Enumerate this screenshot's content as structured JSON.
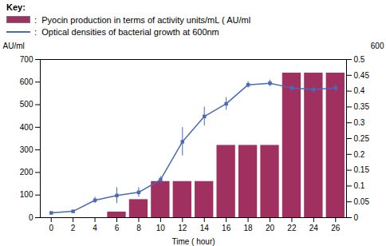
{
  "chart_data": {
    "type": "bar",
    "xlabel": "Time ( hour)",
    "ylabel": "AU/ml",
    "y2label": "600",
    "annotations": [
      "Key:"
    ],
    "legend": "upper left",
    "grid": false,
    "xlim": [
      -1,
      27
    ],
    "xticks": [
      0,
      2,
      4,
      6,
      8,
      10,
      12,
      14,
      16,
      18,
      20,
      22,
      24,
      26
    ],
    "ylim": [
      0,
      700
    ],
    "yticks": [
      0,
      100,
      200,
      300,
      400,
      500,
      600,
      700
    ],
    "y2lim": [
      0,
      0.5
    ],
    "y2ticks": [
      0,
      0.05,
      0.1,
      0.15,
      0.2,
      0.25,
      0.3,
      0.35,
      0.4,
      0.45,
      0.5
    ],
    "series": [
      {
        "name": " :  Pyocin production in terms of activity units/mL ( AU/ml",
        "type": "bar",
        "color": "#a03060",
        "x": [
          6,
          8,
          10,
          12,
          14,
          16,
          18,
          20,
          22,
          24,
          26
        ],
        "values": [
          25,
          80,
          160,
          160,
          160,
          320,
          320,
          320,
          640,
          640,
          640
        ]
      },
      {
        "name": " :  Optical densities of bacterial growth at 600nm",
        "type": "line",
        "axis": "y2",
        "color": "#4a6ab5",
        "marker": "square",
        "line_style": "solid",
        "x": [
          0,
          2,
          4,
          6,
          8,
          10,
          12,
          14,
          16,
          18,
          20,
          22,
          24,
          26
        ],
        "values": [
          0.015,
          0.02,
          0.055,
          0.07,
          0.08,
          0.12,
          0.24,
          0.32,
          0.36,
          0.42,
          0.425,
          0.41,
          0.405,
          0.41
        ],
        "errors": [
          0.003,
          0.003,
          0.01,
          0.025,
          0.015,
          0.01,
          0.045,
          0.03,
          0.02,
          0.01,
          0.01,
          0.01,
          0.01,
          0.01
        ]
      }
    ]
  }
}
